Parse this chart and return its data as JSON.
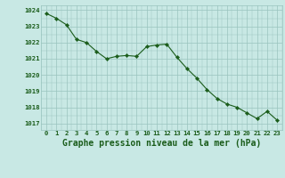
{
  "x": [
    0,
    1,
    2,
    3,
    4,
    5,
    6,
    7,
    8,
    9,
    10,
    11,
    12,
    13,
    14,
    15,
    16,
    17,
    18,
    19,
    20,
    21,
    22,
    23
  ],
  "y": [
    1023.8,
    1023.5,
    1023.1,
    1022.2,
    1022.0,
    1021.45,
    1021.0,
    1021.15,
    1021.2,
    1021.15,
    1021.75,
    1021.85,
    1021.9,
    1021.1,
    1020.4,
    1019.8,
    1019.1,
    1018.55,
    1018.2,
    1018.0,
    1017.65,
    1017.3,
    1017.75,
    1017.2
  ],
  "line_color": "#1a5c1a",
  "marker_color": "#1a5c1a",
  "bg_color": "#c8e8e4",
  "grid_color": "#99c4be",
  "xlabel": "Graphe pression niveau de la mer (hPa)",
  "xlabel_color": "#1a5c1a",
  "tick_color": "#1a5c1a",
  "ylim": [
    1016.6,
    1024.3
  ],
  "yticks": [
    1017,
    1018,
    1019,
    1020,
    1021,
    1022,
    1023,
    1024
  ],
  "xticks": [
    0,
    1,
    2,
    3,
    4,
    5,
    6,
    7,
    8,
    9,
    10,
    11,
    12,
    13,
    14,
    15,
    16,
    17,
    18,
    19,
    20,
    21,
    22,
    23
  ]
}
